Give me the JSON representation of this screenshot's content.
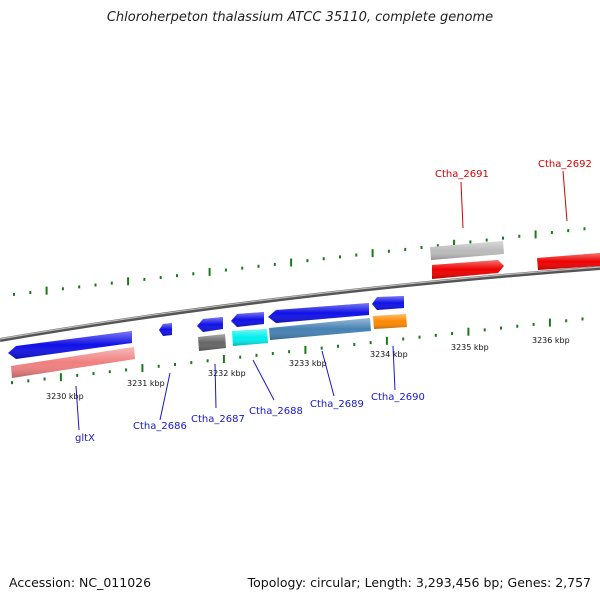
{
  "title": "Chloroherpeton thalassium ATCC 35110, complete genome",
  "footer": {
    "accession": "Accession: NC_011026",
    "summary": "Topology: circular; Length: 3,293,456 bp; Genes: 2,757"
  },
  "colors": {
    "backbone": "#808080",
    "tick": "#1a7a1a",
    "label_minus": "#1818c8",
    "label_plus": "#d40000"
  },
  "scale_labels": [
    "3230 kbp",
    "3231 kbp",
    "3232 kbp",
    "3233 kbp",
    "3234 kbp",
    "3235 kbp",
    "3236 kbp"
  ],
  "genes": [
    {
      "label": "gltX",
      "strand": "minus",
      "color": "#1010e8"
    },
    {
      "label": "Ctha_2686",
      "strand": "minus",
      "color": "#1010e8"
    },
    {
      "label": "Ctha_2687",
      "strand": "minus",
      "color": "#1010e8"
    },
    {
      "label": "Ctha_2688",
      "strand": "minus",
      "color": "#1010e8"
    },
    {
      "label": "Ctha_2689",
      "strand": "minus",
      "color": "#1010e8"
    },
    {
      "label": "Ctha_2690",
      "strand": "minus",
      "color": "#1010e8"
    },
    {
      "label": "Ctha_2691",
      "strand": "plus",
      "color": "#ee0000"
    },
    {
      "label": "Ctha_2692",
      "strand": "plus",
      "color": "#ee0000"
    }
  ],
  "feature_colors": [
    "#f08080",
    "#666666",
    "#00eeee",
    "#4682b4",
    "#ff8800",
    "#bbbbbb"
  ]
}
